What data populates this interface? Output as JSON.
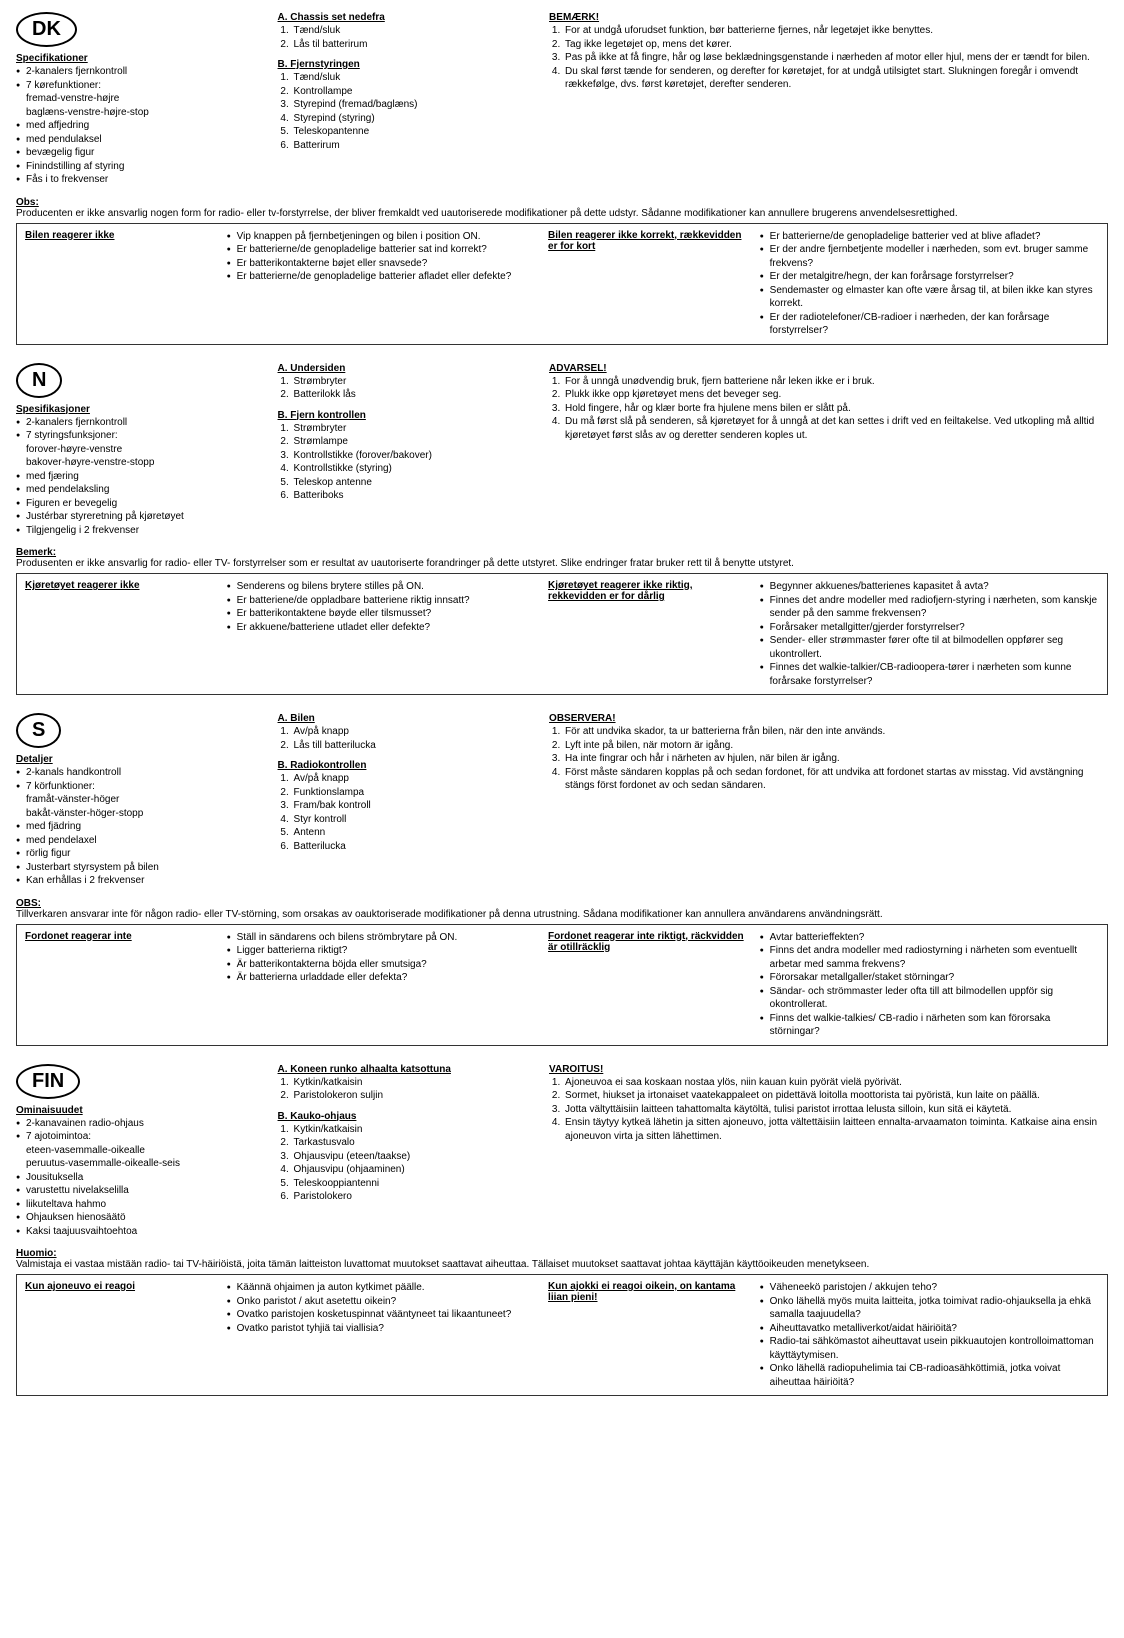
{
  "sections": [
    {
      "code": "DK",
      "spec_head": "Specifikationer",
      "specs": [
        "2-kanalers fjernkontroll",
        "7 kørefunktioner:\nfremad-venstre-højre\nbaglæns-venstre-højre-stop",
        "med affjedring",
        "med pendulaksel",
        "bevægelig figur",
        "Finindstilling af styring",
        "Fås i to frekvenser"
      ],
      "a_head": "A. Chassis set nedefra",
      "a_list": [
        "Tænd/sluk",
        "Lås til batterirum"
      ],
      "b_head": "B. Fjernstyringen",
      "b_list": [
        "Tænd/sluk",
        "Kontrollampe",
        "Styrepind (fremad/baglæns)",
        "Styrepind (styring)",
        "Teleskopantenne",
        "Batterirum"
      ],
      "warn_head": "BEMÆRK!",
      "warn": [
        "For at undgå uforudset funktion, bør batterierne fjernes, når legetøjet ikke benyttes.",
        "Tag ikke legetøjet op, mens det kører.",
        "Pas på ikke at få fingre, hår og løse beklædningsgenstande i nærheden af motor eller hjul, mens der er tændt for bilen.",
        "Du skal først tænde for senderen, og derefter for køretøjet, for at undgå utilsigtet start. Slukningen foregår i omvendt rækkefølge, dvs. først køretøjet, derefter senderen."
      ],
      "obs_head": "Obs:",
      "obs": "Producenten er ikke ansvarlig nogen form for radio- eller tv-forstyrrelse, der bliver fremkaldt ved uautoriserede modifikationer på dette udstyr. Sådanne modifikationer kan annullere brugerens anvendelsesrettighed.",
      "t1_head": "Bilen reagerer ikke",
      "t1_list": [
        "Vip knappen på fjernbetjeningen og bilen i position ON.",
        "Er batterierne/de genopladelige batterier sat ind korrekt?",
        "Er batterikontakterne bøjet eller snavsede?",
        "Er batterierne/de genopladelige batterier afladet eller defekte?"
      ],
      "t2_head": "Bilen reagerer ikke korrekt, rækkevidden er for kort",
      "t2_list": [
        "Er batterierne/de genopladelige batterier ved at blive afladet?",
        "Er der andre fjernbetjente modeller i nærheden, som evt. bruger samme frekvens?",
        "Er der metalgitre/hegn, der kan forårsage forstyrrelser?",
        "Sendemaster og elmaster kan ofte være årsag til, at bilen ikke kan styres korrekt.",
        "Er der radiotelefoner/CB-radioer i nærheden, der kan forårsage forstyrrelser?"
      ]
    },
    {
      "code": "N",
      "spec_head": "Spesifikasjoner",
      "specs": [
        "2-kanalers fjernkontroll",
        "7 styringsfunksjoner:\nforover-høyre-venstre\nbakover-høyre-venstre-stopp",
        "med fjæring",
        "med pendelaksling",
        "Figuren er bevegelig",
        "Justérbar styreretning på kjøretøyet",
        "Tilgjengelig i 2 frekvenser"
      ],
      "a_head": "A. Undersiden",
      "a_list": [
        "Strømbryter",
        "Batterilokk lås"
      ],
      "b_head": "B. Fjern kontrollen",
      "b_list": [
        "Strømbryter",
        "Strømlampe",
        "Kontrollstikke (forover/bakover)",
        "Kontrollstikke (styring)",
        "Teleskop antenne",
        "Batteriboks"
      ],
      "warn_head": "ADVARSEL!",
      "warn": [
        "For å unngå unødvendig bruk, fjern batteriene når leken ikke er i bruk.",
        "Plukk ikke opp kjøretøyet mens det beveger seg.",
        "Hold fingere, hår og klær borte fra hjulene mens bilen er slått på.",
        "Du må først slå på senderen, så kjøretøyet for å unngå at det kan settes i drift ved en feiltakelse. Ved utkopling må alltid kjøretøyet først slås av og deretter senderen koples ut."
      ],
      "obs_head": "Bemerk:",
      "obs": "Produsenten er ikke ansvarlig for radio- eller TV- forstyrrelser  som er resultat av uautoriserte forandringer på dette utstyret. Slike endringer fratar  bruker rett til å benytte utstyret.",
      "t1_head": "Kjøretøyet reagerer ikke",
      "t1_list": [
        "Senderens og bilens brytere stilles på ON.",
        "Er batteriene/de oppladbare batteriene riktig innsatt?",
        "Er batterikontaktene bøyde eller tilsmusset?",
        "Er akkuene/batteriene utladet eller defekte?"
      ],
      "t2_head": "Kjøretøyet reagerer ikke riktig, rekkevidden er for dårlig",
      "t2_list": [
        "Begynner akkuenes/batterienes kapasitet å avta?",
        "Finnes det andre modeller med radiofjern-styring i nærheten, som kanskje sender på den samme frekvensen?",
        "Forårsaker metallgitter/gjerder forstyrrelser?",
        "Sender- eller strømmaster fører ofte til at bilmodellen oppfører seg ukontrollert.",
        "Finnes det walkie-talkier/CB-radioopera-tører i nærheten som kunne forårsake forstyrrelser?"
      ]
    },
    {
      "code": "S",
      "spec_head": "Detaljer",
      "specs": [
        "2-kanals handkontroll",
        "7 körfunktioner:\nframåt-vänster-höger\nbakåt-vänster-höger-stopp",
        "med fjädring",
        "med pendelaxel",
        "rörlig figur",
        "Justerbart styrsystem på bilen",
        "Kan erhållas i 2 frekvenser"
      ],
      "a_head": "A. Bilen",
      "a_list": [
        "Av/på knapp",
        "Lås till batterilucka"
      ],
      "b_head": "B. Radiokontrollen",
      "b_list": [
        "Av/på knapp",
        "Funktionslampa",
        "Fram/bak kontroll",
        "Styr kontroll",
        "Antenn",
        "Batterilucka"
      ],
      "warn_head": "OBSERVERA!",
      "warn": [
        "För att undvika skador, ta ur batterierna från bilen, när den inte används.",
        "Lyft inte på bilen, när motorn är igång.",
        "Ha inte fingrar och hår i närheten av hjulen, när bilen är igång.",
        "Först måste sändaren kopplas på och sedan fordonet, för att undvika att fordonet startas av misstag. Vid avstängning stängs först fordonet av och sedan sändaren."
      ],
      "obs_head": "OBS:",
      "obs": "Tillverkaren ansvarar inte för någon radio- eller TV-störning, som orsakas av oauktoriserade modifikationer på denna utrustning. Sådana modifikationer kan annullera användarens användningsrätt.",
      "t1_head": "Fordonet reagerar inte",
      "t1_list": [
        "Ställ in sändarens och bilens strömbrytare på ON.",
        "Ligger batterierna riktigt?",
        "Är batterikontakterna böjda eller smutsiga?",
        "Är batterierna urladdade eller defekta?"
      ],
      "t2_head": "Fordonet reagerar inte riktigt, räckvidden är otillräcklig",
      "t2_list": [
        "Avtar batterieffekten?",
        "Finns det andra modeller med radiostyrning i närheten som eventuellt arbetar med samma frekvens?",
        "Förorsakar metallgaller/staket störningar?",
        "Sändar- och strömmaster leder ofta till att bilmodellen uppför sig okontrollerat.",
        "Finns det walkie-talkies/ CB-radio i närheten som kan förorsaka störningar?"
      ]
    },
    {
      "code": "FIN",
      "spec_head": "Ominaisuudet",
      "specs": [
        "2-kanavainen radio-ohjaus",
        "7 ajotoimintoa:\neteen-vasemmalle-oikealle\nperuutus-vasemmalle-oikealle-seis",
        "Jousituksella",
        "varustettu nivelakselilla",
        "liikuteltava hahmo",
        "Ohjauksen hienosäätö",
        "Kaksi taajuusvaihtoehtoa"
      ],
      "a_head": "A. Koneen runko alhaalta katsottuna",
      "a_list": [
        "Kytkin/katkaisin",
        "Paristolokeron suljin"
      ],
      "b_head": "B. Kauko-ohjaus",
      "b_list": [
        "Kytkin/katkaisin",
        "Tarkastusvalo",
        "Ohjausvipu (eteen/taakse)",
        "Ohjausvipu (ohjaaminen)",
        "Teleskooppiantenni",
        "Paristolokero"
      ],
      "warn_head": "VAROITUS!",
      "warn": [
        "Ajoneuvoa ei saa koskaan nostaa ylös, niin kauan kuin pyörät vielä pyörivät.",
        "Sormet, hiukset ja irtonaiset vaatekappaleet on pidettävä loitolla moottorista tai pyöristä, kun laite on päällä.",
        "Jotta vältyttäisiin laitteen tahattomalta käytöltä, tulisi paristot irrottaa lelusta silloin, kun sitä ei käytetä.",
        "Ensin täytyy kytkeä lähetin ja sitten ajoneuvo, jotta vältettäisiin laitteen ennalta-arvaamaton toiminta. Katkaise aina ensin ajoneuvon virta ja sitten lähettimen."
      ],
      "obs_head": "Huomio:",
      "obs": "Valmistaja ei vastaa mistään radio- tai TV-häiriöistä, joita tämän laitteiston luvattomat muutokset saattavat aiheuttaa. Tällaiset muutokset saattavat johtaa käyttäjän käyttöoikeuden menetykseen.",
      "t1_head": "Kun ajoneuvo ei reagoi",
      "t1_list": [
        "Käännä ohjaimen ja auton kytkimet päälle.",
        "Onko paristot / akut asetettu oikein?",
        "Ovatko paristojen kosketuspinnat vääntyneet tai likaantuneet?",
        "Ovatko paristot tyhjiä tai viallisia?"
      ],
      "t2_head": "Kun ajokki ei reagoi oikein, on kantama liian pieni!",
      "t2_list": [
        "Väheneekö paristojen / akkujen teho?",
        "Onko lähellä myös muita laitteita, jotka toimivat radio-ohjauksella ja ehkä samalla taajuudella?",
        "Aiheuttavatko metalliverkot/aidat häiriöitä?",
        "Radio-tai sähkömastot aiheuttavat usein pikkuautojen kontrolloimattoman käyttäytymisen.",
        "Onko lähellä radiopuhelimia tai CB-radioasähköttimiä, jotka voivat aiheuttaa häiriöitä?"
      ]
    }
  ]
}
